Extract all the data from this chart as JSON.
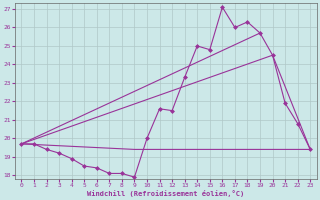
{
  "xlabel": "Windchill (Refroidissement éolien,°C)",
  "background_color": "#cce8e8",
  "grid_color": "#b0c8c8",
  "line_color": "#993399",
  "xlim": [
    -0.5,
    23.5
  ],
  "ylim": [
    17.8,
    27.3
  ],
  "yticks": [
    18,
    19,
    20,
    21,
    22,
    23,
    24,
    25,
    26,
    27
  ],
  "xticks": [
    0,
    1,
    2,
    3,
    4,
    5,
    6,
    7,
    8,
    9,
    10,
    11,
    12,
    13,
    14,
    15,
    16,
    17,
    18,
    19,
    20,
    21,
    22,
    23
  ],
  "series1_x": [
    0,
    1,
    2,
    3,
    4,
    5,
    6,
    7,
    8,
    9,
    10,
    11,
    12,
    13,
    14,
    15,
    16,
    17,
    18,
    19,
    20,
    21,
    22,
    23
  ],
  "series1_y": [
    19.7,
    19.7,
    19.4,
    19.2,
    18.9,
    18.5,
    18.4,
    18.1,
    18.1,
    17.9,
    20.0,
    21.6,
    21.5,
    23.3,
    25.0,
    24.8,
    27.1,
    26.0,
    26.3,
    25.7,
    24.5,
    21.9,
    20.8,
    19.4
  ],
  "series2_x": [
    0,
    20,
    23
  ],
  "series2_y": [
    19.7,
    24.5,
    19.4
  ],
  "series3_x": [
    0,
    19
  ],
  "series3_y": [
    19.7,
    25.7
  ],
  "series4_x": [
    0,
    9,
    20,
    23
  ],
  "series4_y": [
    19.7,
    19.4,
    19.4,
    19.4
  ]
}
